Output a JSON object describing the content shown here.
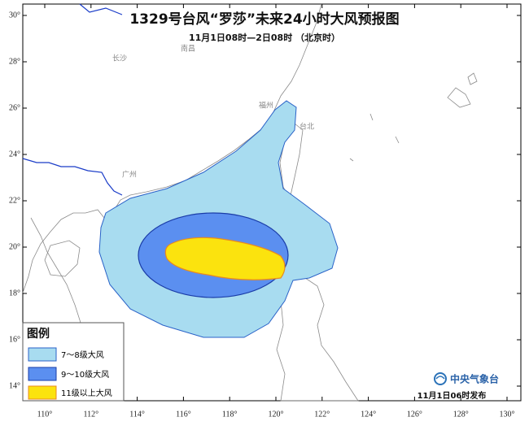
{
  "header": {
    "title": "1329号台风“罗莎”未来24小时大风预报图",
    "subtitle": "11月1日08时—2日08时 （北京时）"
  },
  "map": {
    "lon_ticks": [
      "110°",
      "112°",
      "114°",
      "116°",
      "118°",
      "120°",
      "122°",
      "124°",
      "126°",
      "128°",
      "130°"
    ],
    "lat_ticks": [
      "14°",
      "16°",
      "18°",
      "20°",
      "22°",
      "24°",
      "26°",
      "28°",
      "30°"
    ],
    "places": [
      "长沙",
      "南昌",
      "福州",
      "广州",
      "台北"
    ]
  },
  "legend": {
    "title": "图例",
    "items": [
      "7～8级大风",
      "9～10级大风",
      "11级以上大风"
    ]
  },
  "footer": {
    "issuer": "中央气象台",
    "issued": "11月1日06时发布"
  }
}
